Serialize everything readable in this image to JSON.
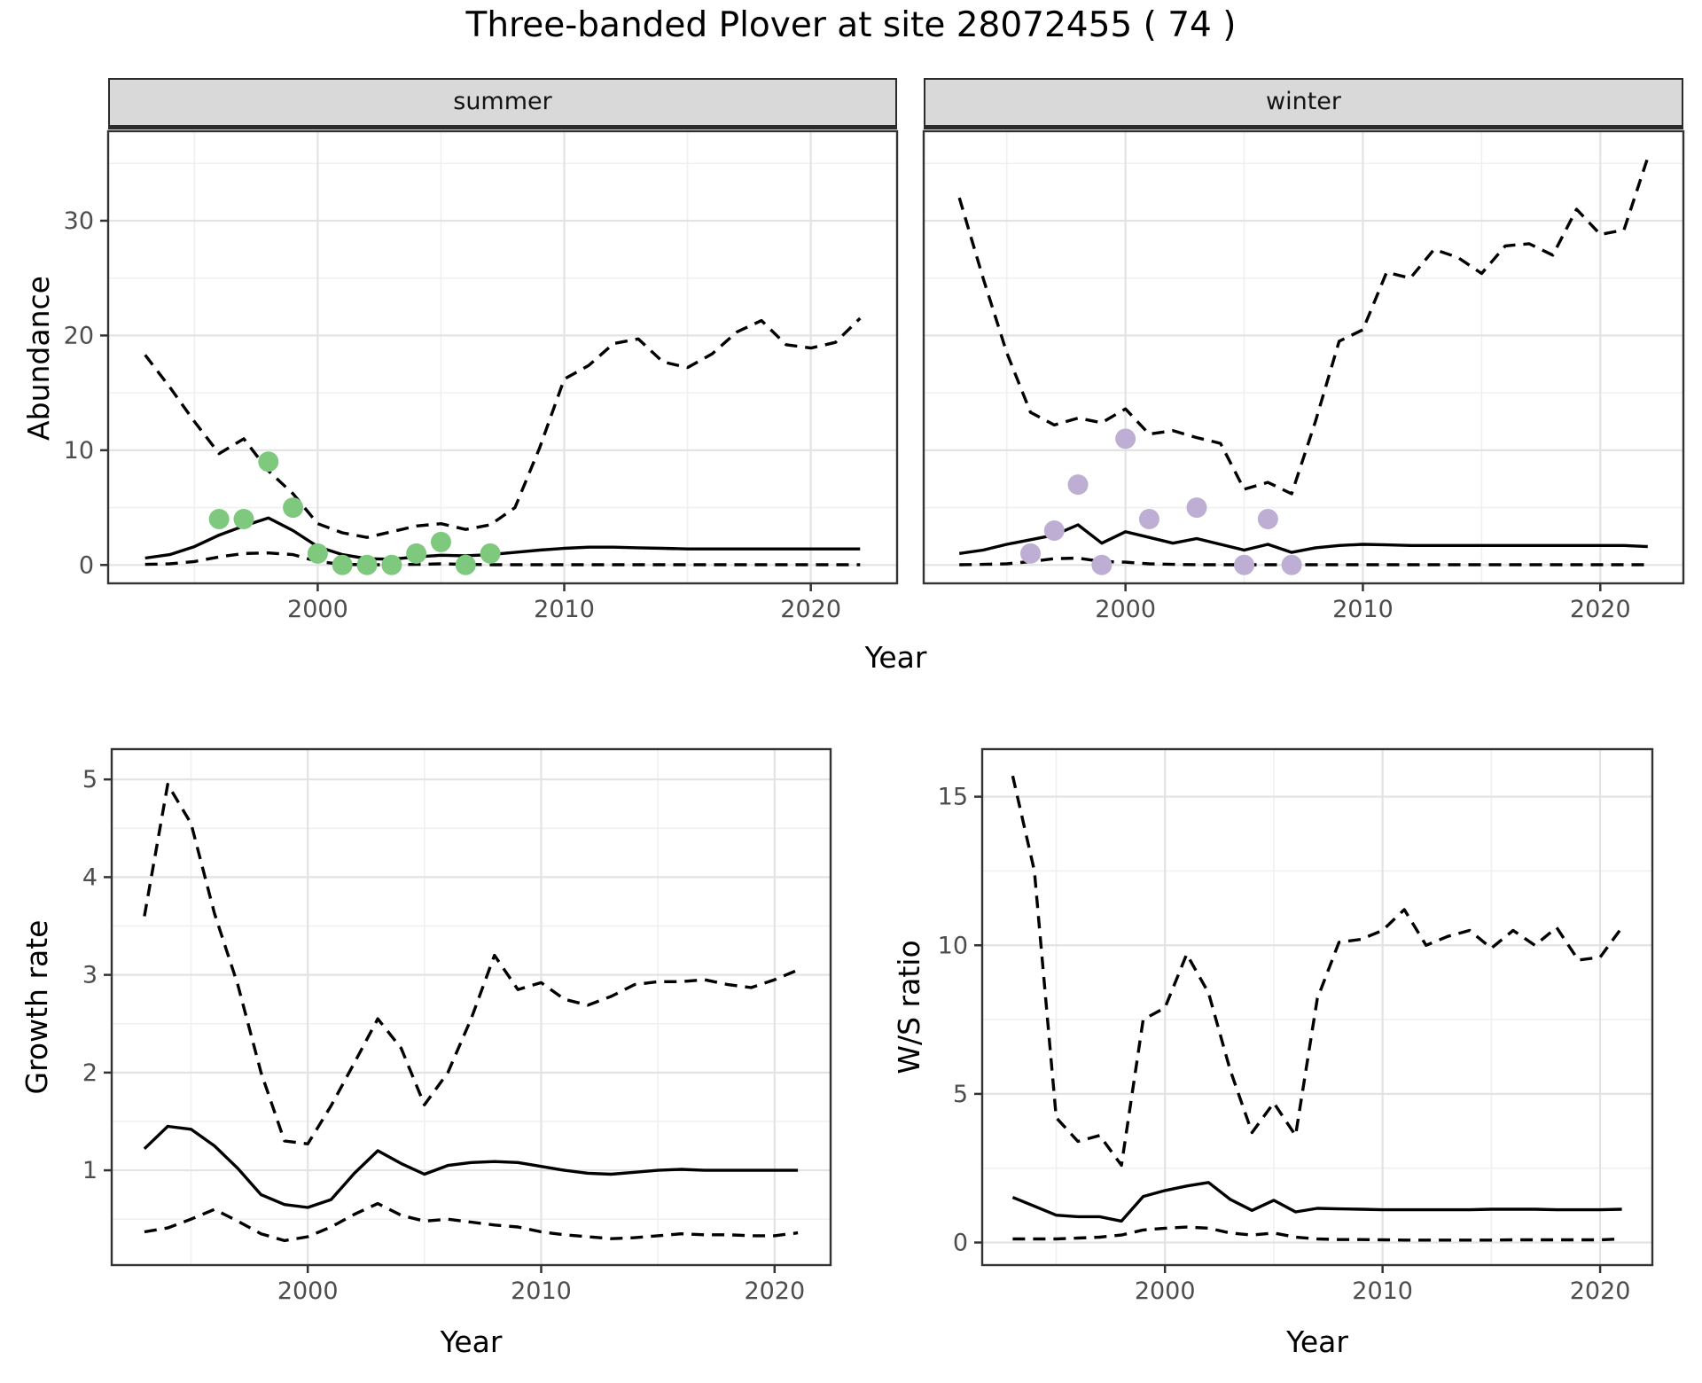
{
  "title": "Three-banded Plover at site 28072455 ( 74 )",
  "facets": {
    "summer": "summer",
    "winter": "winter"
  },
  "axis_titles": {
    "x": "Year",
    "abundance": "Abundance",
    "growth": "Growth rate",
    "ws": "W/S ratio"
  },
  "colors": {
    "summer_points": "#7FC97F",
    "winter_points": "#BEAED4",
    "line": "#000000",
    "grid_major": "#E3E3E3",
    "grid_minor": "#F0F0F0",
    "panel_border": "#333333",
    "strip_bg": "#D9D9D9",
    "tick_text": "#4D4D4D"
  },
  "chart_data": [
    {
      "id": "summer",
      "type": "line",
      "facet_label": "summer",
      "ylabel": "Abundance",
      "xlabel": "Year",
      "x": [
        1993,
        1994,
        1995,
        1996,
        1997,
        1998,
        1999,
        2000,
        2001,
        2002,
        2003,
        2004,
        2005,
        2006,
        2007,
        2008,
        2009,
        2010,
        2011,
        2012,
        2013,
        2014,
        2015,
        2016,
        2017,
        2018,
        2019,
        2020,
        2021,
        2022
      ],
      "series": [
        {
          "name": "upper_95ci",
          "style": "dashed",
          "values": [
            18.3,
            15.5,
            12.5,
            9.7,
            11.0,
            8.2,
            6.2,
            3.6,
            2.8,
            2.4,
            2.9,
            3.4,
            3.6,
            3.1,
            3.5,
            5.0,
            10.2,
            16.2,
            17.4,
            19.3,
            19.7,
            17.7,
            17.2,
            18.4,
            20.3,
            21.3,
            19.2,
            18.9,
            19.4,
            21.5
          ]
        },
        {
          "name": "median",
          "style": "solid",
          "values": [
            0.6,
            0.9,
            1.6,
            2.6,
            3.4,
            4.1,
            3.0,
            1.6,
            0.9,
            0.55,
            0.5,
            0.7,
            0.85,
            0.8,
            0.9,
            1.1,
            1.3,
            1.45,
            1.55,
            1.55,
            1.5,
            1.45,
            1.4,
            1.4,
            1.4,
            1.4,
            1.4,
            1.4,
            1.4,
            1.4
          ]
        },
        {
          "name": "lower_95ci",
          "style": "dashed",
          "values": [
            0.05,
            0.1,
            0.3,
            0.7,
            1.0,
            1.05,
            0.9,
            0.3,
            0.05,
            0.02,
            0.02,
            0.05,
            0.1,
            0.05,
            0.02,
            0.02,
            0.02,
            0.02,
            0.02,
            0.02,
            0.02,
            0.02,
            0.02,
            0.02,
            0.02,
            0.02,
            0.02,
            0.02,
            0.02,
            0.02
          ]
        }
      ],
      "points": {
        "name": "observed_counts",
        "color_key": "summer_points",
        "x": [
          1996,
          1997,
          1998,
          1999,
          2000,
          2001,
          2002,
          2003,
          2004,
          2005,
          2006,
          2007
        ],
        "y": [
          4,
          4,
          9,
          5,
          1,
          0,
          0,
          0,
          1,
          2,
          0,
          1
        ]
      },
      "xlim": [
        1991.5,
        2023.5
      ],
      "ylim": [
        -1.6,
        37.8
      ],
      "x_ticks": [
        2000,
        2010,
        2020
      ],
      "x_minor": [
        1995,
        2005,
        2015
      ],
      "y_ticks": [
        0,
        10,
        20,
        30
      ],
      "y_minor": [
        5,
        15,
        25,
        35
      ],
      "show_y_labels": true
    },
    {
      "id": "winter",
      "type": "line",
      "facet_label": "winter",
      "ylabel": "Abundance",
      "xlabel": "Year",
      "x": [
        1993,
        1994,
        1995,
        1996,
        1997,
        1998,
        1999,
        2000,
        2001,
        2002,
        2003,
        2004,
        2005,
        2006,
        2007,
        2008,
        2009,
        2010,
        2011,
        2012,
        2013,
        2014,
        2015,
        2016,
        2017,
        2018,
        2019,
        2020,
        2021,
        2022
      ],
      "series": [
        {
          "name": "upper_95ci",
          "style": "dashed",
          "values": [
            32.0,
            25.0,
            18.5,
            13.3,
            12.2,
            12.8,
            12.4,
            13.6,
            11.4,
            11.7,
            11.1,
            10.6,
            6.6,
            7.2,
            6.2,
            12.5,
            19.5,
            20.5,
            25.5,
            25.0,
            27.5,
            26.8,
            25.4,
            27.8,
            28.0,
            27.0,
            31.0,
            28.8,
            29.2,
            35.5
          ]
        },
        {
          "name": "median",
          "style": "solid",
          "values": [
            1.0,
            1.3,
            1.8,
            2.2,
            2.6,
            3.5,
            1.9,
            2.9,
            2.4,
            1.9,
            2.3,
            1.8,
            1.3,
            1.8,
            1.1,
            1.5,
            1.7,
            1.8,
            1.75,
            1.7,
            1.7,
            1.7,
            1.7,
            1.7,
            1.7,
            1.7,
            1.7,
            1.7,
            1.7,
            1.6
          ]
        },
        {
          "name": "lower_95ci",
          "style": "dashed",
          "values": [
            0.02,
            0.05,
            0.1,
            0.3,
            0.55,
            0.6,
            0.3,
            0.25,
            0.1,
            0.05,
            0.02,
            0.02,
            0.02,
            0.02,
            0.02,
            0.02,
            0.02,
            0.02,
            0.02,
            0.02,
            0.02,
            0.02,
            0.02,
            0.02,
            0.02,
            0.02,
            0.02,
            0.02,
            0.02,
            0.02
          ]
        }
      ],
      "points": {
        "name": "observed_counts",
        "color_key": "winter_points",
        "x": [
          1996,
          1997,
          1998,
          1999,
          2000,
          2001,
          2003,
          2005,
          2006,
          2007
        ],
        "y": [
          1,
          3,
          7,
          0,
          11,
          4,
          5,
          0,
          4,
          0
        ]
      },
      "xlim": [
        1991.5,
        2023.5
      ],
      "ylim": [
        -1.6,
        37.8
      ],
      "x_ticks": [
        2000,
        2010,
        2020
      ],
      "x_minor": [
        1995,
        2005,
        2015
      ],
      "y_ticks": [
        0,
        10,
        20,
        30
      ],
      "y_minor": [
        5,
        15,
        25,
        35
      ],
      "show_y_labels": false
    },
    {
      "id": "growth",
      "type": "line",
      "title": "Growth rate",
      "ylabel": "Growth rate",
      "xlabel": "Year",
      "x": [
        1993,
        1994,
        1995,
        1996,
        1997,
        1998,
        1999,
        2000,
        2001,
        2002,
        2003,
        2004,
        2005,
        2006,
        2007,
        2008,
        2009,
        2010,
        2011,
        2012,
        2013,
        2014,
        2015,
        2016,
        2017,
        2018,
        2019,
        2020,
        2021
      ],
      "series": [
        {
          "name": "upper_95ci",
          "style": "dashed",
          "values": [
            3.6,
            4.95,
            4.55,
            3.63,
            2.9,
            2.0,
            1.3,
            1.27,
            1.66,
            2.1,
            2.55,
            2.25,
            1.67,
            2.0,
            2.55,
            3.2,
            2.85,
            2.92,
            2.75,
            2.69,
            2.78,
            2.9,
            2.93,
            2.93,
            2.95,
            2.9,
            2.87,
            2.95,
            3.05
          ]
        },
        {
          "name": "median",
          "style": "solid",
          "values": [
            1.22,
            1.45,
            1.42,
            1.25,
            1.02,
            0.75,
            0.65,
            0.62,
            0.7,
            0.97,
            1.2,
            1.07,
            0.96,
            1.05,
            1.08,
            1.09,
            1.08,
            1.04,
            1.0,
            0.97,
            0.96,
            0.98,
            1.0,
            1.01,
            1.0,
            1.0,
            1.0,
            1.0,
            1.0
          ]
        },
        {
          "name": "lower_95ci",
          "style": "dashed",
          "values": [
            0.37,
            0.41,
            0.5,
            0.6,
            0.48,
            0.35,
            0.28,
            0.32,
            0.42,
            0.55,
            0.66,
            0.54,
            0.48,
            0.5,
            0.47,
            0.44,
            0.42,
            0.37,
            0.34,
            0.32,
            0.3,
            0.31,
            0.33,
            0.35,
            0.34,
            0.34,
            0.33,
            0.33,
            0.36
          ]
        }
      ],
      "xlim": [
        1991.6,
        2022.4
      ],
      "ylim": [
        0.03,
        5.31
      ],
      "x_ticks": [
        2000,
        2010,
        2020
      ],
      "x_minor": [
        1995,
        2005,
        2015
      ],
      "y_ticks": [
        1,
        2,
        3,
        4,
        5
      ],
      "y_minor": [
        0.5,
        1.5,
        2.5,
        3.5,
        4.5
      ],
      "show_y_labels": true
    },
    {
      "id": "ws",
      "type": "line",
      "title": "W/S ratio",
      "ylabel": "W/S ratio",
      "xlabel": "Year",
      "x": [
        1993,
        1994,
        1995,
        1996,
        1997,
        1998,
        1999,
        2000,
        2001,
        2002,
        2003,
        2004,
        2005,
        2006,
        2007,
        2008,
        2009,
        2010,
        2011,
        2012,
        2013,
        2014,
        2015,
        2016,
        2017,
        2018,
        2019,
        2020,
        2021
      ],
      "series": [
        {
          "name": "upper_95ci",
          "style": "dashed",
          "values": [
            15.7,
            12.5,
            4.2,
            3.4,
            3.6,
            2.6,
            7.5,
            7.9,
            9.7,
            8.4,
            5.8,
            3.7,
            4.7,
            3.6,
            8.2,
            10.1,
            10.2,
            10.5,
            11.2,
            10.0,
            10.3,
            10.5,
            9.9,
            10.5,
            10.0,
            10.6,
            9.5,
            9.6,
            10.6
          ]
        },
        {
          "name": "median",
          "style": "solid",
          "values": [
            1.52,
            1.22,
            0.92,
            0.87,
            0.87,
            0.72,
            1.55,
            1.75,
            1.9,
            2.02,
            1.45,
            1.08,
            1.42,
            1.03,
            1.15,
            1.13,
            1.12,
            1.1,
            1.1,
            1.1,
            1.1,
            1.1,
            1.12,
            1.12,
            1.12,
            1.1,
            1.1,
            1.1,
            1.12
          ]
        },
        {
          "name": "lower_95ci",
          "style": "dashed",
          "values": [
            0.12,
            0.12,
            0.12,
            0.15,
            0.18,
            0.25,
            0.42,
            0.48,
            0.52,
            0.48,
            0.32,
            0.25,
            0.32,
            0.18,
            0.12,
            0.1,
            0.1,
            0.09,
            0.08,
            0.08,
            0.08,
            0.08,
            0.08,
            0.09,
            0.09,
            0.09,
            0.09,
            0.09,
            0.12
          ]
        }
      ],
      "xlim": [
        1991.6,
        2022.4
      ],
      "ylim": [
        -0.76,
        16.6
      ],
      "x_ticks": [
        2000,
        2010,
        2020
      ],
      "x_minor": [
        2.5
      ],
      "x_minor_years": [
        1995,
        2005,
        2015
      ],
      "y_ticks": [
        0,
        5,
        10,
        15
      ],
      "y_minor": [
        2.5,
        7.5,
        12.5
      ],
      "show_y_labels": true
    }
  ]
}
